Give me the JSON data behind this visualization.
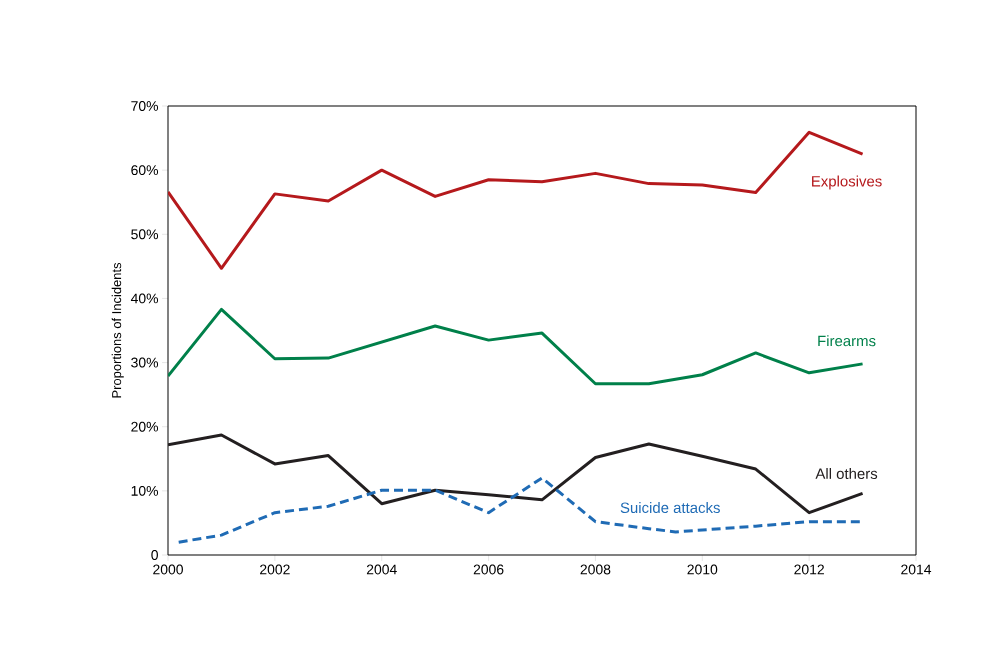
{
  "chart_data": {
    "type": "line",
    "ylabel": "Proportions of Incidents",
    "x": [
      2000,
      2001,
      2002,
      2003,
      2004,
      2005,
      2006,
      2007,
      2008,
      2009,
      2010,
      2011,
      2012,
      2013
    ],
    "series": [
      {
        "name": "Explosives",
        "color": "#b5191c",
        "line_style": "solid",
        "values": [
          56.6,
          44.7,
          56.3,
          55.2,
          60.0,
          55.9,
          58.5,
          58.2,
          59.5,
          57.9,
          57.7,
          56.5,
          65.9,
          62.5
        ]
      },
      {
        "name": "Firearms",
        "color": "#00804a",
        "line_style": "solid",
        "values": [
          27.9,
          38.3,
          30.6,
          30.7,
          33.2,
          35.7,
          33.5,
          34.6,
          26.7,
          26.7,
          28.1,
          31.5,
          28.4,
          29.8
        ]
      },
      {
        "name": "All others",
        "color": "#231f20",
        "line_style": "solid",
        "values": [
          17.2,
          18.7,
          14.2,
          15.5,
          8.0,
          10.1,
          9.4,
          8.6,
          15.2,
          17.3,
          15.4,
          13.4,
          6.6,
          9.6
        ]
      },
      {
        "name": "Suicide attacks",
        "color": "#1f6bb5",
        "line_style": "dashed",
        "x": [
          2000.2,
          2001,
          2002,
          2003,
          2004,
          2005,
          2006,
          2007,
          2008,
          2009,
          2009.5,
          2010,
          2011,
          2012,
          2013
        ],
        "values": [
          2.0,
          3.1,
          6.6,
          7.6,
          10.1,
          10.1,
          6.6,
          12.0,
          5.2,
          4.1,
          3.6,
          3.9,
          4.5,
          5.2,
          5.2
        ]
      }
    ],
    "xlim": [
      2000,
      2014
    ],
    "xticks": [
      2000,
      2002,
      2004,
      2006,
      2008,
      2010,
      2012,
      2014
    ],
    "ylim": [
      0,
      70
    ],
    "yticks": [
      {
        "value": 0,
        "label": "0"
      },
      {
        "value": 10,
        "label": "10%"
      },
      {
        "value": 20,
        "label": "20%"
      },
      {
        "value": 30,
        "label": "30%"
      },
      {
        "value": 40,
        "label": "40%"
      },
      {
        "value": 50,
        "label": "50%"
      },
      {
        "value": 60,
        "label": "60%"
      },
      {
        "value": 70,
        "label": "70%"
      }
    ],
    "grid": false,
    "legend": false
  }
}
